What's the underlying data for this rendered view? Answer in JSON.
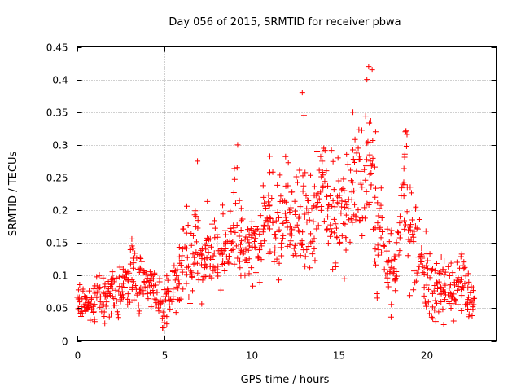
{
  "chart_data": {
    "type": "scatter",
    "title": "Day 056 of 2015, SRMTID for receiver pbwa",
    "xlabel": "GPS time / hours",
    "ylabel": "SRMTID / TECUs",
    "xlim": [
      0,
      24
    ],
    "ylim": [
      0,
      0.45
    ],
    "xticks": [
      0,
      5,
      10,
      15,
      20
    ],
    "xtick_labels": [
      "0",
      "5",
      "10",
      "15",
      "20"
    ],
    "yticks": [
      0,
      0.05,
      0.1,
      0.15,
      0.2,
      0.25,
      0.3,
      0.35,
      0.4,
      0.45
    ],
    "ytick_labels": [
      "0",
      "0.05",
      "0.1",
      "0.15",
      "0.2",
      "0.25",
      "0.3",
      "0.35",
      "0.4",
      "0.45"
    ],
    "grid": true,
    "marker": "+",
    "series": [
      {
        "name": "SRMTID",
        "color": "#ff0000",
        "x": [
          0.0,
          0.2,
          0.4,
          0.6,
          0.8,
          1.0,
          1.2,
          1.4,
          1.6,
          1.8,
          2.0,
          2.2,
          2.4,
          2.6,
          2.8,
          3.0,
          3.2,
          3.4,
          3.6,
          3.8,
          4.0,
          4.2,
          4.4,
          4.6,
          4.8,
          5.0,
          5.2,
          5.4,
          5.6,
          5.8,
          6.0,
          6.2,
          6.4,
          6.6,
          6.8,
          7.0,
          7.2,
          7.4,
          7.6,
          7.8,
          8.0,
          8.2,
          8.4,
          8.6,
          8.8,
          9.0,
          9.2,
          9.4,
          9.6,
          9.8,
          10.0,
          10.2,
          10.4,
          10.6,
          10.8,
          11.0,
          11.2,
          11.4,
          11.6,
          11.8,
          12.0,
          12.2,
          12.4,
          12.6,
          12.8,
          13.0,
          13.2,
          13.4,
          13.6,
          13.8,
          14.0,
          14.2,
          14.4,
          14.6,
          14.8,
          15.0,
          15.2,
          15.4,
          15.6,
          15.8,
          16.0,
          16.2,
          16.4,
          16.6,
          16.8,
          17.0,
          17.2,
          17.4,
          17.6,
          17.8,
          18.0,
          18.2,
          18.4,
          18.6,
          18.8,
          19.0,
          19.2,
          19.4,
          19.6,
          19.8,
          20.0,
          20.2,
          20.4,
          20.6,
          20.8,
          21.0,
          21.2,
          21.4,
          21.6,
          21.8,
          22.0,
          22.2,
          22.4,
          22.6
        ],
        "y": [
          0.07,
          0.05,
          0.06,
          0.05,
          0.06,
          0.05,
          0.09,
          0.07,
          0.06,
          0.07,
          0.08,
          0.06,
          0.07,
          0.08,
          0.09,
          0.1,
          0.12,
          0.1,
          0.09,
          0.1,
          0.08,
          0.08,
          0.09,
          0.08,
          0.07,
          0.05,
          0.06,
          0.07,
          0.09,
          0.1,
          0.12,
          0.14,
          0.12,
          0.13,
          0.15,
          0.12,
          0.11,
          0.14,
          0.13,
          0.15,
          0.15,
          0.14,
          0.16,
          0.13,
          0.15,
          0.18,
          0.2,
          0.17,
          0.14,
          0.15,
          0.15,
          0.16,
          0.14,
          0.17,
          0.18,
          0.2,
          0.19,
          0.18,
          0.17,
          0.19,
          0.21,
          0.2,
          0.17,
          0.19,
          0.2,
          0.18,
          0.19,
          0.17,
          0.2,
          0.23,
          0.25,
          0.24,
          0.2,
          0.18,
          0.17,
          0.21,
          0.2,
          0.21,
          0.22,
          0.24,
          0.24,
          0.22,
          0.23,
          0.25,
          0.3,
          0.2,
          0.17,
          0.18,
          0.15,
          0.12,
          0.1,
          0.09,
          0.14,
          0.2,
          0.25,
          0.18,
          0.16,
          0.14,
          0.13,
          0.11,
          0.1,
          0.09,
          0.08,
          0.07,
          0.1,
          0.09,
          0.08,
          0.08,
          0.07,
          0.1,
          0.1,
          0.09,
          0.07,
          0.06
        ],
        "scatter": [
          0.03,
          0.02,
          0.02,
          0.02,
          0.02,
          0.03,
          0.04,
          0.03,
          0.03,
          0.03,
          0.03,
          0.03,
          0.03,
          0.03,
          0.03,
          0.04,
          0.04,
          0.04,
          0.03,
          0.03,
          0.03,
          0.03,
          0.03,
          0.03,
          0.03,
          0.03,
          0.03,
          0.03,
          0.04,
          0.04,
          0.05,
          0.06,
          0.05,
          0.05,
          0.05,
          0.05,
          0.04,
          0.05,
          0.05,
          0.05,
          0.05,
          0.05,
          0.05,
          0.05,
          0.05,
          0.06,
          0.06,
          0.05,
          0.05,
          0.05,
          0.05,
          0.05,
          0.05,
          0.05,
          0.06,
          0.06,
          0.06,
          0.06,
          0.06,
          0.06,
          0.07,
          0.07,
          0.06,
          0.07,
          0.07,
          0.06,
          0.06,
          0.06,
          0.07,
          0.07,
          0.08,
          0.08,
          0.07,
          0.07,
          0.06,
          0.07,
          0.07,
          0.07,
          0.07,
          0.08,
          0.08,
          0.08,
          0.08,
          0.09,
          0.1,
          0.08,
          0.07,
          0.07,
          0.06,
          0.05,
          0.05,
          0.05,
          0.06,
          0.07,
          0.08,
          0.07,
          0.06,
          0.06,
          0.05,
          0.05,
          0.04,
          0.04,
          0.04,
          0.03,
          0.04,
          0.04,
          0.03,
          0.03,
          0.03,
          0.04,
          0.04,
          0.04,
          0.03,
          0.02
        ]
      }
    ],
    "notable_points": [
      {
        "x": 16.7,
        "y": 0.42
      },
      {
        "x": 16.9,
        "y": 0.415
      },
      {
        "x": 16.6,
        "y": 0.4
      },
      {
        "x": 12.9,
        "y": 0.38
      },
      {
        "x": 13.0,
        "y": 0.345
      },
      {
        "x": 15.8,
        "y": 0.35
      },
      {
        "x": 17.1,
        "y": 0.32
      },
      {
        "x": 18.8,
        "y": 0.32
      },
      {
        "x": 9.2,
        "y": 0.3
      },
      {
        "x": 6.9,
        "y": 0.275
      },
      {
        "x": 4.9,
        "y": 0.02
      },
      {
        "x": 21.0,
        "y": 0.025
      }
    ]
  }
}
